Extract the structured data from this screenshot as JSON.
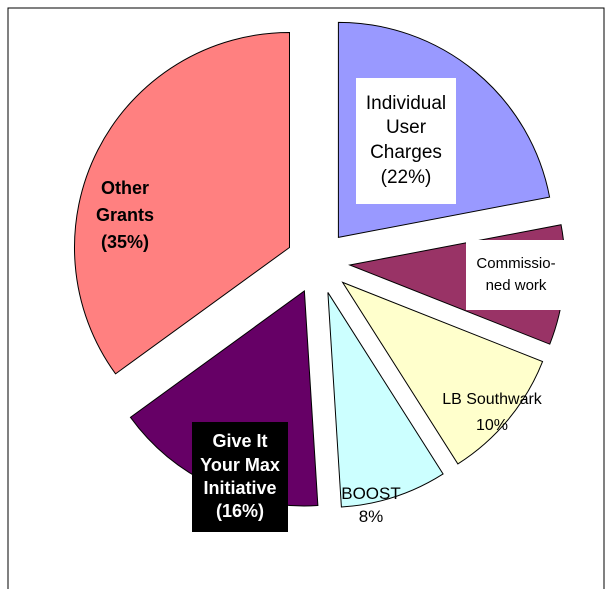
{
  "chart_data": {
    "type": "pie",
    "categories": [
      "Individual User Charges",
      "Commissio-ned work",
      "LB Southwark",
      "BOOST",
      "Give It Your Max Initiative",
      "Other Grants"
    ],
    "values": [
      22,
      9,
      10,
      8,
      16,
      35
    ],
    "value_labels": [
      "(22%)",
      null,
      "10%",
      "8%",
      "(16%)",
      "(35%)"
    ],
    "colors": [
      "#9999ff",
      "#993366",
      "#ffffcc",
      "#ccffff",
      "#660066",
      "#ff8080"
    ],
    "start_angle": 0,
    "exploded": true
  }
}
